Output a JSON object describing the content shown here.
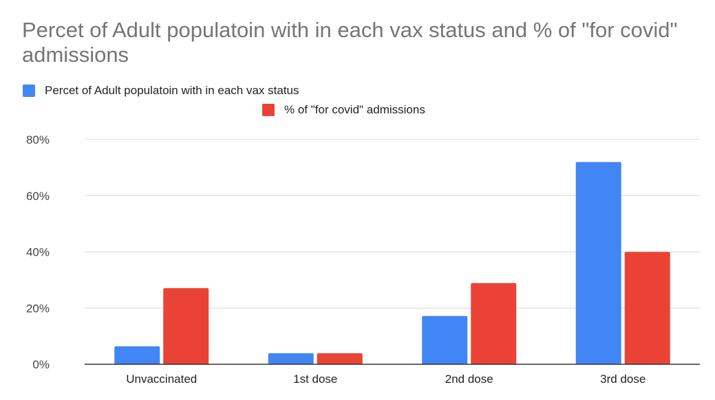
{
  "chart_data": {
    "type": "bar",
    "title": "Percet of Adult populatoin with in each vax status and % of \"for covid\" admissions",
    "categories": [
      "Unvaccinated",
      "1st dose",
      "2nd dose",
      "3rd dose"
    ],
    "series": [
      {
        "name": "Percet of Adult populatoin with in each vax status",
        "color": "#4285f4",
        "values": [
          6.4,
          3.9,
          17.2,
          72.0
        ]
      },
      {
        "name": "% of \"for covid\" admissions",
        "color": "#ea4335",
        "values": [
          27.1,
          3.9,
          28.9,
          40.0
        ]
      }
    ],
    "yticks": [
      "0%",
      "20%",
      "40%",
      "60%",
      "80%"
    ],
    "ylim": [
      0,
      80
    ],
    "grid": true,
    "legend": "top",
    "xlabel": "",
    "ylabel": ""
  }
}
